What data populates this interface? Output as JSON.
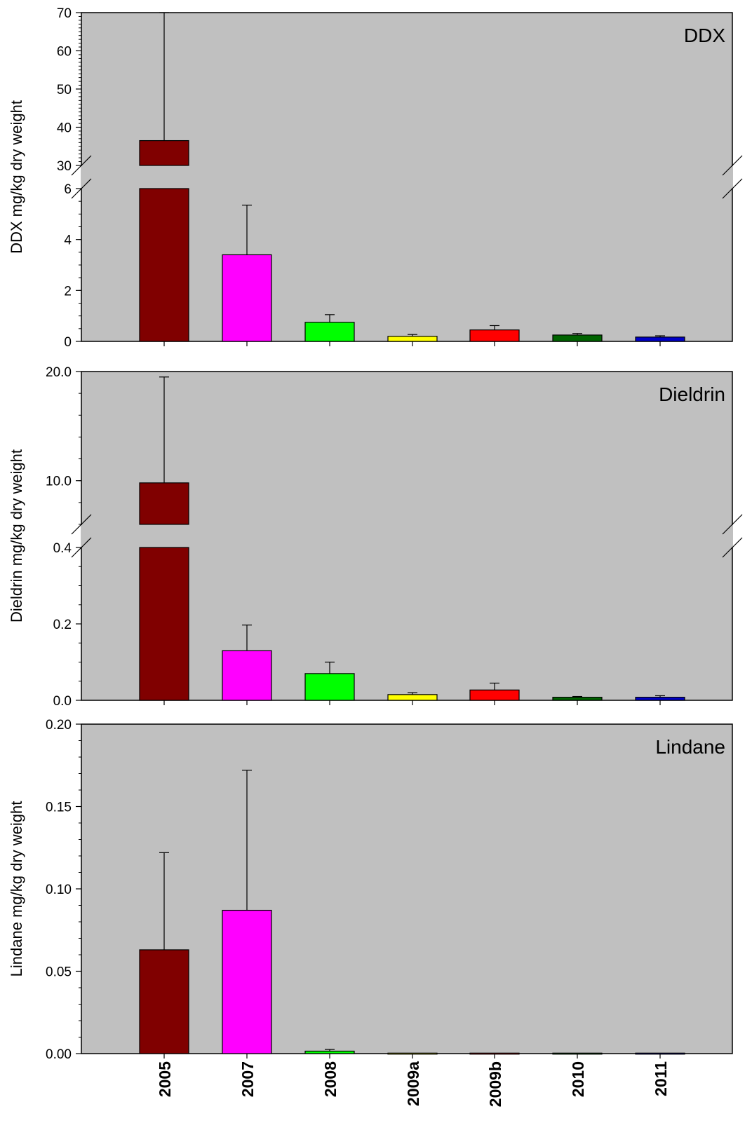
{
  "chart_data": [
    {
      "type": "bar",
      "title": "DDX",
      "ylabel": "DDX mg/kg dry weight",
      "categories": [
        "2005",
        "2007",
        "2008",
        "2009a",
        "2009b",
        "2010",
        "2011"
      ],
      "values": [
        36.5,
        3.4,
        0.75,
        0.2,
        0.45,
        0.25,
        0.17
      ],
      "error_upper": [
        70,
        5.35,
        1.05,
        0.27,
        0.62,
        0.31,
        0.22
      ],
      "colors": [
        "#800000",
        "#ff00ff",
        "#00ff00",
        "#ffff00",
        "#ff0000",
        "#006400",
        "#0000c8"
      ],
      "axis_break": {
        "lower_range": [
          0,
          6
        ],
        "upper_range": [
          30,
          70
        ]
      },
      "lower_ticks": [
        "0",
        "2",
        "4",
        "6"
      ],
      "upper_ticks": [
        "30",
        "40",
        "50",
        "60",
        "70"
      ],
      "grid": false,
      "background": "#c0c0c0"
    },
    {
      "type": "bar",
      "title": "Dieldrin",
      "ylabel": "Dieldrin mg/kg dry weight",
      "categories": [
        "2005",
        "2007",
        "2008",
        "2009a",
        "2009b",
        "2010",
        "2011"
      ],
      "values": [
        9.8,
        0.13,
        0.07,
        0.015,
        0.027,
        0.008,
        0.008
      ],
      "error_upper": [
        19.5,
        0.197,
        0.1,
        0.02,
        0.045,
        0.01,
        0.012
      ],
      "colors": [
        "#800000",
        "#ff00ff",
        "#00ff00",
        "#ffff00",
        "#ff0000",
        "#006400",
        "#0000c8"
      ],
      "axis_break": {
        "lower_range": [
          0,
          0.4
        ],
        "upper_range": [
          6,
          20
        ]
      },
      "lower_ticks": [
        "0.0",
        "0.2",
        "0.4"
      ],
      "upper_ticks": [
        "10.0",
        "20.0"
      ],
      "grid": false,
      "background": "#c0c0c0"
    },
    {
      "type": "bar",
      "title": "Lindane",
      "ylabel": "Lindane mg/kg dry weight",
      "categories": [
        "2005",
        "2007",
        "2008",
        "2009a",
        "2009b",
        "2010",
        "2011"
      ],
      "values": [
        0.063,
        0.087,
        0.0015,
        0.0003,
        0.0003,
        0.0003,
        0.0003
      ],
      "error_upper": [
        0.122,
        0.172,
        0.0025,
        null,
        null,
        null,
        null
      ],
      "colors": [
        "#800000",
        "#ff00ff",
        "#00ff00",
        "#ffff00",
        "#ff0000",
        "#006400",
        "#0000c8"
      ],
      "ylim": [
        0,
        0.2
      ],
      "ticks": [
        "0.00",
        "0.05",
        "0.10",
        "0.15",
        "0.20"
      ],
      "grid": false,
      "background": "#c0c0c0"
    }
  ]
}
